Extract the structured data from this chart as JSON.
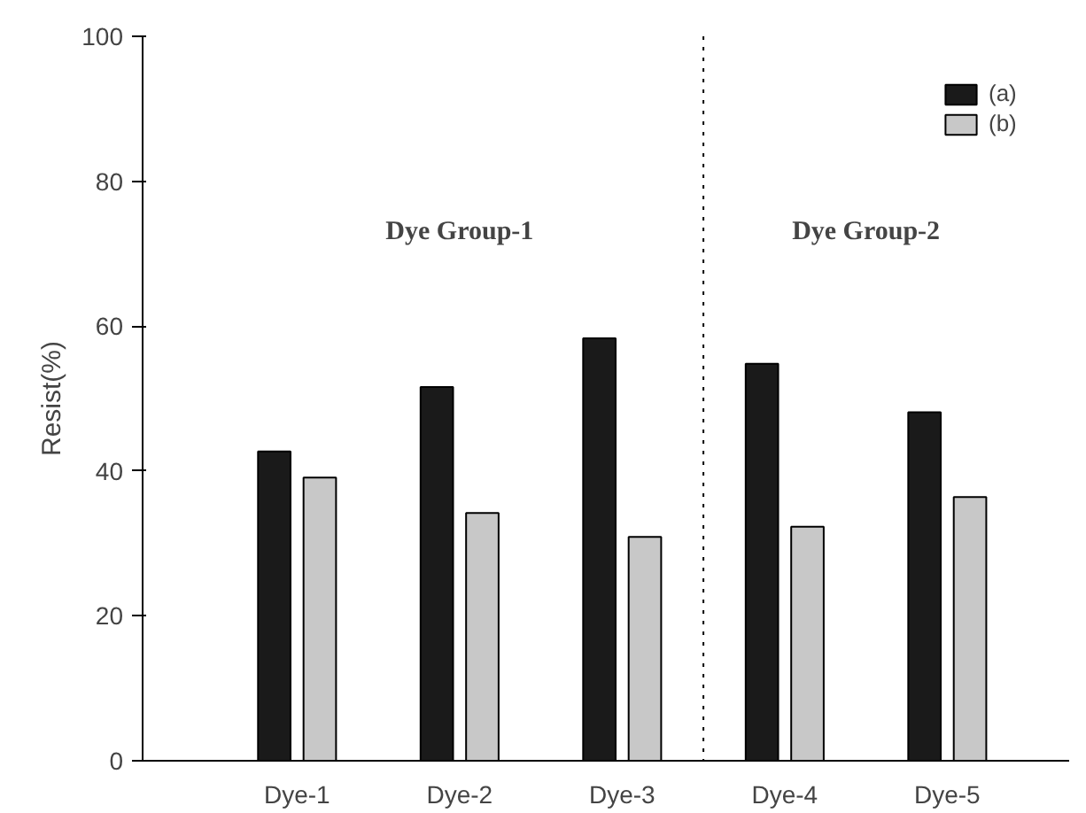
{
  "chart_data": {
    "type": "bar",
    "ylabel": "Resist(%)",
    "categories": [
      "Dye-1",
      "Dye-2",
      "Dye-3",
      "Dye-4",
      "Dye-5"
    ],
    "series": [
      {
        "name": "(a)",
        "color": "#1a1a1a",
        "values": [
          42.7,
          51.6,
          58.3,
          54.8,
          48.1
        ]
      },
      {
        "name": "(b)",
        "color": "#c8c8c8",
        "values": [
          39.1,
          34.2,
          30.9,
          32.3,
          36.4
        ]
      }
    ],
    "ylim": [
      0,
      100
    ],
    "yticks": [
      0,
      20,
      40,
      60,
      80,
      100
    ],
    "annotations": [
      "Dye Group-1",
      "Dye Group-2"
    ],
    "grid": false,
    "legend": "top right"
  }
}
